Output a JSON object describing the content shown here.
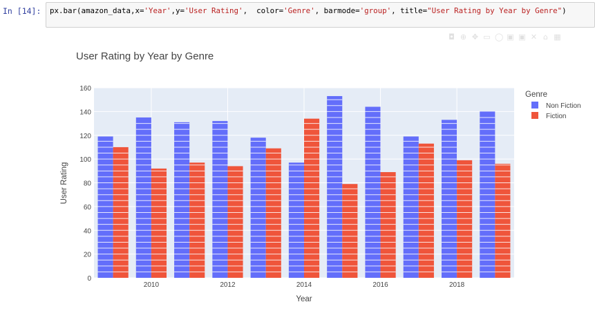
{
  "notebook": {
    "prompt": "In [14]:",
    "code_parts": [
      {
        "t": "px.bar(amazon_data,x=",
        "s": false
      },
      {
        "t": "'Year'",
        "s": true
      },
      {
        "t": ",y=",
        "s": false
      },
      {
        "t": "'User Rating'",
        "s": true
      },
      {
        "t": ",  color=",
        "s": false
      },
      {
        "t": "'Genre'",
        "s": true
      },
      {
        "t": ", barmode=",
        "s": false
      },
      {
        "t": "'group'",
        "s": true
      },
      {
        "t": ", title=",
        "s": false
      },
      {
        "t": "\"User Rating by Year by Genre\"",
        "s": true
      },
      {
        "t": ")",
        "s": false
      }
    ]
  },
  "modebar": {
    "icons": [
      "camera-icon",
      "zoom-icon",
      "pan-icon",
      "box-select-icon",
      "lasso-icon",
      "zoom-in-icon",
      "zoom-out-icon",
      "autoscale-icon",
      "reset-axes-icon",
      "plotly-logo-icon"
    ]
  },
  "chart_data": {
    "type": "bar",
    "barmode": "group",
    "title": "User Rating by Year by Genre",
    "xlabel": "Year",
    "ylabel": "User Rating",
    "x": [
      2009,
      2010,
      2011,
      2012,
      2013,
      2014,
      2015,
      2016,
      2017,
      2018,
      2019
    ],
    "x_tick_labels": [
      "2010",
      "2012",
      "2014",
      "2016",
      "2018"
    ],
    "x_tick_values": [
      2010,
      2012,
      2014,
      2016,
      2018
    ],
    "y_tick_labels": [
      "0",
      "20",
      "40",
      "60",
      "80",
      "100",
      "120",
      "140",
      "160"
    ],
    "ylim": [
      0,
      160
    ],
    "grid": true,
    "legend": {
      "title": "Genre",
      "placement": "top-right"
    },
    "series": [
      {
        "name": "Non Fiction",
        "color": "#636efa",
        "values": [
          119,
          135,
          131,
          132,
          118,
          97,
          153,
          144,
          119,
          133,
          140
        ]
      },
      {
        "name": "Fiction",
        "color": "#ef553b",
        "values": [
          110,
          92,
          97,
          94,
          109,
          134,
          79,
          89,
          113,
          99,
          96
        ]
      }
    ]
  }
}
